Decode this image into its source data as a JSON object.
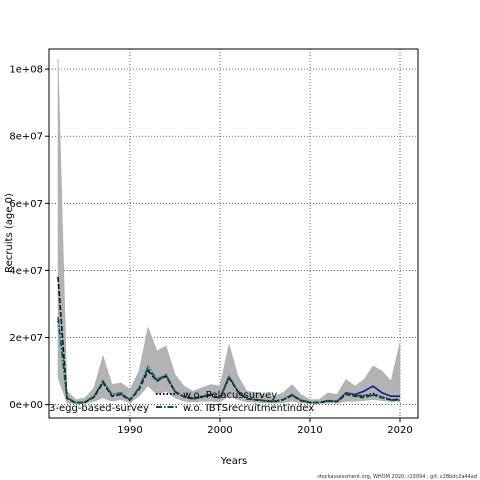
{
  "chart_data": {
    "type": "line",
    "title": "",
    "xlabel": "Years",
    "ylabel": "Recruits (age 0)",
    "xlim": [
      1981,
      2022
    ],
    "ylim": [
      -4000000,
      106000000
    ],
    "x_ticks": [
      {
        "value": 1990,
        "label": "1990"
      },
      {
        "value": 2000,
        "label": "2000"
      },
      {
        "value": 2010,
        "label": "2010"
      },
      {
        "value": 2020,
        "label": "2020"
      }
    ],
    "y_ticks": [
      {
        "value": 0,
        "label": "0e+00"
      },
      {
        "value": 20000000,
        "label": "2e+07"
      },
      {
        "value": 40000000,
        "label": "4e+07"
      },
      {
        "value": 60000000,
        "label": "6e+07"
      },
      {
        "value": 80000000,
        "label": "8e+07"
      },
      {
        "value": 100000000,
        "label": "1e+08"
      }
    ],
    "grid": true,
    "x": [
      1982,
      1983,
      1984,
      1985,
      1986,
      1987,
      1988,
      1989,
      1990,
      1991,
      1992,
      1993,
      1994,
      1995,
      1996,
      1997,
      1998,
      1999,
      2000,
      2001,
      2002,
      2003,
      2004,
      2005,
      2006,
      2007,
      2008,
      2009,
      2010,
      2011,
      2012,
      2013,
      2014,
      2015,
      2016,
      2017,
      2018,
      2019,
      2020
    ],
    "band": {
      "upper": [
        103000000,
        4000000,
        1500000,
        2000000,
        5000000,
        14500000,
        6000000,
        6500000,
        4500000,
        10000000,
        23000000,
        16000000,
        17500000,
        9000000,
        5500000,
        4000000,
        5000000,
        6000000,
        5500000,
        18000000,
        8500000,
        4000000,
        3500000,
        3000000,
        2500000,
        3500000,
        6000000,
        3000000,
        1500000,
        1500000,
        3500000,
        3000000,
        7500000,
        5500000,
        7500000,
        11500000,
        10000000,
        7000000,
        18500000
      ],
      "lower": [
        8000000,
        500000,
        200000,
        300000,
        1000000,
        2000000,
        1000000,
        1500000,
        500000,
        2500000,
        5500000,
        3000000,
        4000000,
        2000000,
        1000000,
        800000,
        1000000,
        1000000,
        800000,
        2500000,
        1500000,
        800000,
        700000,
        500000,
        400000,
        600000,
        1000000,
        500000,
        300000,
        300000,
        400000,
        400000,
        1000000,
        1000000,
        1200000,
        1500000,
        1200000,
        900000,
        1000000
      ]
    },
    "series": [
      {
        "name": "",
        "color": "#1a1a8c",
        "dash": "solid",
        "values": [
          25000000,
          2000000,
          600000,
          800000,
          2500000,
          7000000,
          3000000,
          3500000,
          1500000,
          5000000,
          11500000,
          7500000,
          9000000,
          4000000,
          2500000,
          1800000,
          2500000,
          3000000,
          2000000,
          8500000,
          4000000,
          1800000,
          1500000,
          1200000,
          1000000,
          1500000,
          3000000,
          1300000,
          700000,
          600000,
          1200000,
          1000000,
          3500000,
          3000000,
          4000000,
          5500000,
          3500000,
          2500000,
          2500000
        ]
      },
      {
        "name": "",
        "color": "#41b6c4",
        "dash": "solid",
        "values": [
          24000000,
          2100000,
          700000,
          900000,
          2400000,
          7000000,
          2900000,
          3300000,
          1600000,
          5000000,
          11500000,
          7300000,
          9000000,
          4000000,
          2500000,
          1800000,
          2400000,
          3000000,
          2100000,
          8400000,
          4000000,
          1800000,
          1500000,
          1200000,
          1000000,
          1400000,
          2900000,
          1300000,
          700000,
          600000,
          1100000,
          1000000,
          3200000,
          2600000,
          2800000,
          2700000,
          2200000,
          1400000,
          1200000
        ]
      },
      {
        "name": "",
        "color": "#7fcdbb",
        "dash": "solid",
        "values": [
          24500000,
          2100000,
          700000,
          900000,
          2500000,
          6800000,
          2900000,
          3300000,
          1600000,
          4900000,
          11200000,
          7300000,
          8900000,
          4000000,
          2500000,
          1800000,
          2400000,
          3000000,
          2100000,
          8300000,
          3900000,
          1800000,
          1500000,
          1200000,
          1000000,
          1400000,
          2800000,
          1300000,
          700000,
          600000,
          1100000,
          1000000,
          3000000,
          2500000,
          2600000,
          2500000,
          2000000,
          1300000,
          1100000
        ]
      },
      {
        "name": "3-egg-based-survey",
        "color": "#1a1a1a",
        "dash": "dashed",
        "values": [
          38000000,
          1800000,
          500000,
          700000,
          2200000,
          6500000,
          2500000,
          3000000,
          1300000,
          4500000,
          10000000,
          7000000,
          8500000,
          3800000,
          2300000,
          1700000,
          2300000,
          2800000,
          1900000,
          8000000,
          3800000,
          1700000,
          1400000,
          1100000,
          900000,
          1400000,
          2700000,
          1200000,
          600000,
          600000,
          1100000,
          900000,
          3000000,
          2500000,
          2000000,
          3000000,
          2000000,
          1400000,
          1500000
        ]
      },
      {
        "name": "w.o. Pelacussurvey",
        "color": "#0b0b3a",
        "dash": "dotted",
        "values": [
          38000000,
          1900000,
          500000,
          700000,
          2300000,
          6700000,
          2600000,
          3100000,
          1400000,
          4700000,
          10500000,
          7100000,
          8600000,
          3900000,
          2400000,
          1700000,
          2300000,
          2900000,
          2000000,
          8100000,
          3800000,
          1700000,
          1400000,
          1100000,
          900000,
          1400000,
          2800000,
          1200000,
          600000,
          600000,
          1100000,
          900000,
          3200000,
          2600000,
          2600000,
          3300000,
          2300000,
          1500000,
          1600000
        ]
      },
      {
        "name": "w.o. IBTSrecruitmentindex",
        "color": "#0f4d3f",
        "dash": "dashdot",
        "values": [
          26000000,
          2000000,
          600000,
          800000,
          2400000,
          6900000,
          2800000,
          3200000,
          1500000,
          4900000,
          11000000,
          7200000,
          8800000,
          3900000,
          2400000,
          1800000,
          2400000,
          2900000,
          2000000,
          8300000,
          3900000,
          1800000,
          1500000,
          1200000,
          1000000,
          1400000,
          2800000,
          1300000,
          700000,
          600000,
          1100000,
          1000000,
          3100000,
          2600000,
          2700000,
          2700000,
          2100000,
          1400000,
          1200000
        ]
      }
    ],
    "legend_position": "bottom-left"
  },
  "footer": "stockassessment.org, WHOM 2020, r13094 , git: c28bdc2a44ad"
}
